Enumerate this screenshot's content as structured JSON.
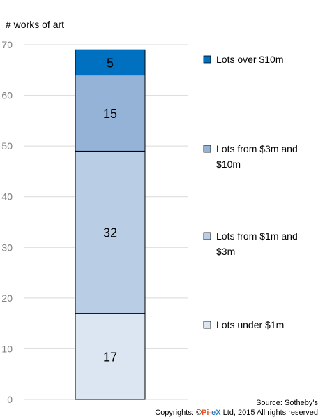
{
  "chart_data": {
    "type": "bar",
    "stacked": true,
    "ylabel": "# works of art",
    "ylim": [
      0,
      70
    ],
    "yticks": [
      0,
      10,
      20,
      30,
      40,
      50,
      60,
      70
    ],
    "grid": true,
    "legend_position": "right",
    "series": [
      {
        "name": "Lots under $1m",
        "value": 17,
        "color": "#dce6f2"
      },
      {
        "name": "Lots from $1m and $3m",
        "value": 32,
        "color": "#b9cde5"
      },
      {
        "name": "Lots from $3m and $10m",
        "value": 15,
        "color": "#95b3d7"
      },
      {
        "name": "Lots over $10m",
        "value": 5,
        "color": "#0070c0"
      }
    ]
  },
  "footer": {
    "source": "Source: Sotheby's",
    "copyright_prefix": "Copyrights: ©",
    "brand_pi": "Pi-",
    "brand_ex": "eX",
    "copyright_suffix": " Ltd, 2015 All rights reserved"
  }
}
